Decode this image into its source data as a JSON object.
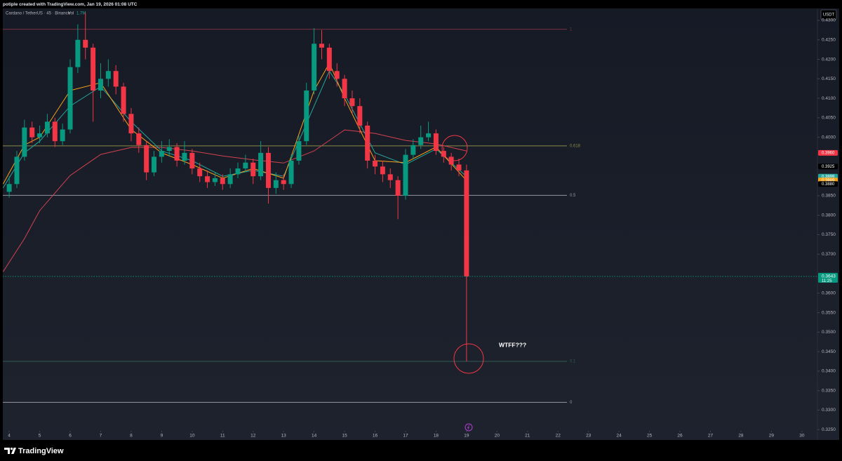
{
  "header": "potiple created with TradingView.com, Jan 19, 2026 01:08 UTC",
  "brand": "TradingView",
  "chart_data": {
    "type": "candlestick",
    "symbol": "Cardano / TetherUS · 45 · Binance",
    "volume_label": "Vol",
    "volume_value": "1.7M",
    "currency": "USDT",
    "annotation": "WTFF???",
    "xlim": [
      3.79,
      30.51
    ],
    "ylim": [
      0.3227,
      0.4327
    ],
    "xticks": [
      4,
      5,
      6,
      7,
      8,
      9,
      10,
      11,
      12,
      13,
      14,
      15,
      16,
      17,
      18,
      19,
      20,
      21,
      22,
      23,
      24,
      25,
      26,
      27,
      28,
      29,
      30
    ],
    "yticks": [
      {
        "value": 0.325,
        "label": "0.3250"
      },
      {
        "value": 0.33,
        "label": "0.3300"
      },
      {
        "value": 0.335,
        "label": "0.3350"
      },
      {
        "value": 0.34,
        "label": "0.3400"
      },
      {
        "value": 0.345,
        "label": "0.3450"
      },
      {
        "value": 0.35,
        "label": "0.3500"
      },
      {
        "value": 0.355,
        "label": "0.3550"
      },
      {
        "value": 0.36,
        "label": "0.3600"
      },
      {
        "value": 0.37,
        "label": "0.3700"
      },
      {
        "value": 0.375,
        "label": "0.3750"
      },
      {
        "value": 0.38,
        "label": "0.3800"
      },
      {
        "value": 0.385,
        "label": "0.3850"
      },
      {
        "value": 0.4,
        "label": "0.4000"
      },
      {
        "value": 0.405,
        "label": "0.4050"
      },
      {
        "value": 0.41,
        "label": "0.4100"
      },
      {
        "value": 0.415,
        "label": "0.4150"
      },
      {
        "value": 0.42,
        "label": "0.4200"
      },
      {
        "value": 0.425,
        "label": "0.4250"
      },
      {
        "value": 0.43,
        "label": "0.4300"
      }
    ],
    "up_color": "#089981",
    "down_color": "#f23645",
    "candles": {
      "x": [
        4,
        4.25,
        4.5,
        4.75,
        5,
        5.25,
        5.5,
        5.75,
        6,
        6.25,
        6.5,
        6.75,
        7,
        7.25,
        7.5,
        7.75,
        8,
        8.25,
        8.5,
        8.75,
        9,
        9.25,
        9.5,
        9.75,
        10,
        10.25,
        10.5,
        10.75,
        11,
        11.25,
        11.5,
        11.75,
        12,
        12.25,
        12.5,
        12.75,
        13,
        13.25,
        13.5,
        13.75,
        14,
        14.25,
        14.5,
        14.75,
        15,
        15.25,
        15.5,
        15.75,
        16,
        16.25,
        16.5,
        16.75,
        17,
        17.25,
        17.5,
        17.75,
        18,
        18.25,
        18.5,
        18.75,
        19
      ],
      "open": [
        0.386,
        0.388,
        0.395,
        0.4025,
        0.4,
        0.401,
        0.404,
        0.399,
        0.402,
        0.418,
        0.425,
        0.423,
        0.412,
        0.415,
        0.417,
        0.413,
        0.406,
        0.401,
        0.398,
        0.391,
        0.395,
        0.3965,
        0.3975,
        0.394,
        0.396,
        0.392,
        0.39,
        0.3885,
        0.3895,
        0.388,
        0.3905,
        0.392,
        0.3935,
        0.39,
        0.396,
        0.387,
        0.389,
        0.388,
        0.394,
        0.399,
        0.412,
        0.424,
        0.423,
        0.417,
        0.415,
        0.41,
        0.408,
        0.403,
        0.394,
        0.3925,
        0.3905,
        0.389,
        0.385,
        0.3955,
        0.398,
        0.4,
        0.401,
        0.3965,
        0.395,
        0.393,
        0.3915
      ],
      "high": [
        0.39,
        0.3965,
        0.4045,
        0.404,
        0.403,
        0.406,
        0.405,
        0.4035,
        0.42,
        0.429,
        0.432,
        0.424,
        0.419,
        0.42,
        0.4185,
        0.414,
        0.4075,
        0.4025,
        0.399,
        0.3965,
        0.399,
        0.3995,
        0.3985,
        0.399,
        0.397,
        0.3935,
        0.3915,
        0.391,
        0.3905,
        0.392,
        0.3935,
        0.3955,
        0.3945,
        0.399,
        0.3975,
        0.391,
        0.3905,
        0.3955,
        0.4005,
        0.414,
        0.428,
        0.4275,
        0.424,
        0.419,
        0.416,
        0.412,
        0.41,
        0.404,
        0.3955,
        0.394,
        0.392,
        0.39,
        0.397,
        0.3995,
        0.403,
        0.404,
        0.402,
        0.3975,
        0.396,
        0.3945,
        0.393
      ],
      "low": [
        0.3845,
        0.387,
        0.394,
        0.3985,
        0.3985,
        0.4,
        0.3975,
        0.398,
        0.401,
        0.4165,
        0.42,
        0.404,
        0.41,
        0.413,
        0.411,
        0.404,
        0.399,
        0.396,
        0.389,
        0.39,
        0.3935,
        0.395,
        0.3925,
        0.393,
        0.3905,
        0.3885,
        0.387,
        0.3875,
        0.3865,
        0.387,
        0.3895,
        0.391,
        0.388,
        0.389,
        0.383,
        0.3855,
        0.3865,
        0.387,
        0.393,
        0.398,
        0.411,
        0.42,
        0.415,
        0.413,
        0.408,
        0.406,
        0.401,
        0.392,
        0.3905,
        0.3885,
        0.387,
        0.379,
        0.384,
        0.3945,
        0.397,
        0.399,
        0.3955,
        0.3935,
        0.3915,
        0.39,
        0.3425
      ],
      "close": [
        0.388,
        0.395,
        0.4025,
        0.4,
        0.401,
        0.404,
        0.399,
        0.402,
        0.418,
        0.425,
        0.423,
        0.412,
        0.415,
        0.417,
        0.413,
        0.406,
        0.401,
        0.398,
        0.391,
        0.395,
        0.3965,
        0.3975,
        0.394,
        0.396,
        0.392,
        0.39,
        0.3885,
        0.3895,
        0.388,
        0.3905,
        0.392,
        0.3935,
        0.39,
        0.396,
        0.387,
        0.389,
        0.388,
        0.394,
        0.399,
        0.412,
        0.424,
        0.423,
        0.417,
        0.415,
        0.41,
        0.408,
        0.403,
        0.394,
        0.3925,
        0.3905,
        0.389,
        0.385,
        0.3955,
        0.398,
        0.4,
        0.401,
        0.3965,
        0.395,
        0.393,
        0.3915,
        0.3643
      ]
    },
    "lines": [
      {
        "color": "#d2424f",
        "x": [
          3.8,
          4.5,
          5,
          6,
          7,
          8,
          9,
          10,
          11,
          12,
          13,
          14,
          14.5,
          15,
          16,
          17,
          18,
          19
        ],
        "values": [
          0.3655,
          0.374,
          0.3812,
          0.3902,
          0.3956,
          0.3974,
          0.3974,
          0.3965,
          0.3952,
          0.3942,
          0.3934,
          0.3965,
          0.3992,
          0.4019,
          0.401,
          0.3992,
          0.3983,
          0.3965
        ]
      },
      {
        "color": "#26a69a",
        "x": [
          3.8,
          4.5,
          5,
          6,
          7,
          8,
          9,
          10,
          11,
          12,
          13,
          14,
          14.5,
          15,
          16,
          17,
          18,
          19
        ],
        "values": [
          0.387,
          0.396,
          0.399,
          0.408,
          0.413,
          0.404,
          0.3965,
          0.394,
          0.39,
          0.3915,
          0.39,
          0.408,
          0.417,
          0.411,
          0.396,
          0.393,
          0.397,
          0.3899
        ]
      },
      {
        "color": "#f7a21b",
        "x": [
          3.8,
          4.5,
          5,
          6,
          7,
          8,
          9,
          10,
          11,
          12,
          13,
          14,
          14.5,
          15,
          16,
          17,
          18,
          19
        ],
        "values": [
          0.388,
          0.398,
          0.4,
          0.412,
          0.414,
          0.402,
          0.396,
          0.393,
          0.3895,
          0.392,
          0.3895,
          0.412,
          0.419,
          0.41,
          0.394,
          0.3935,
          0.3975,
          0.3889
        ]
      }
    ],
    "levels": [
      {
        "label": "1",
        "value": 0.4277,
        "color": "#7a3340"
      },
      {
        "label": "0.618",
        "value": 0.3978,
        "color": "#8a8a45"
      },
      {
        "label": "0.5",
        "value": 0.3851,
        "color": "#9598a1"
      },
      {
        "label": "0.1",
        "value": 0.3425,
        "color": "#2f5a50"
      },
      {
        "label": "0",
        "value": 0.332,
        "color": "#9598a1"
      }
    ],
    "price_badges": [
      {
        "value": 0.396,
        "label": "0.3960",
        "color": "#f23645"
      },
      {
        "value": 0.3925,
        "label": "0.3925",
        "color": "#000000"
      },
      {
        "value": 0.3899,
        "label": "0.3899",
        "color": "#26a69a"
      },
      {
        "value": 0.3889,
        "label": "0.3889",
        "color": "#f7a21b"
      },
      {
        "value": 0.388,
        "label": "0.3880",
        "color": "#000000"
      }
    ],
    "last_price": {
      "value": 0.3643,
      "label": "0.3643",
      "countdown": "11:25",
      "color": "#089981"
    }
  }
}
